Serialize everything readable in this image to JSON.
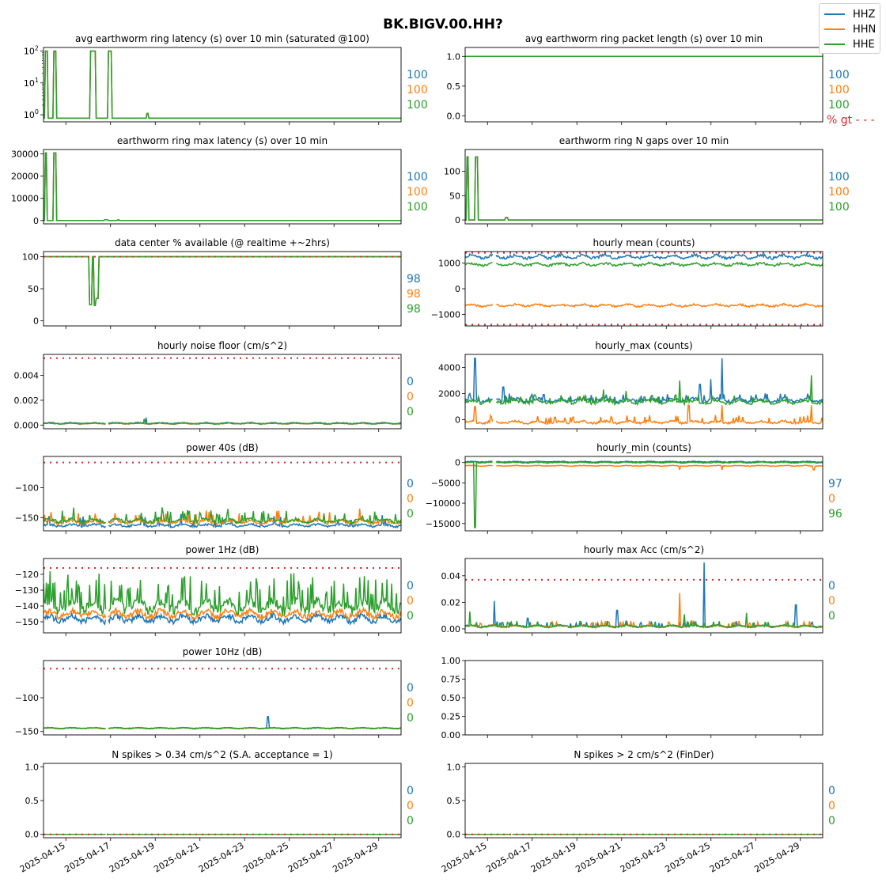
{
  "figure_title": "BK.BIGV.00.HH?",
  "legend": [
    {
      "name": "HHZ",
      "color": "#1f77b4"
    },
    {
      "name": "HHN",
      "color": "#ff7f0e"
    },
    {
      "name": "HHE",
      "color": "#2ca02c"
    }
  ],
  "colors": {
    "threshold": "#d62728",
    "HHZ": "#1f77b4",
    "HHN": "#ff7f0e",
    "HHE": "#2ca02c"
  },
  "x_tick_labels": [
    "2025-04-15",
    "2025-04-17",
    "2025-04-19",
    "2025-04-21",
    "2025-04-23",
    "2025-04-25",
    "2025-04-27",
    "2025-04-29"
  ],
  "chart_data": [
    {
      "id": "latency",
      "type": "line",
      "title": "avg earthworm ring latency (s)   over 10 min (saturated @100)",
      "yscale": "log",
      "ylim": [
        0.6,
        130
      ],
      "yticks": [
        1,
        10,
        100
      ],
      "yticklabels": [
        "10^0",
        "10^1",
        "10^2"
      ],
      "xlim": [
        "2025-04-14",
        "2025-04-30"
      ],
      "side_values": [
        "100",
        "100",
        "100"
      ],
      "threshold": null,
      "description": "baseline ~0.8 s with spikes to 100 s on Apr 14-15 and Apr 16-17, small bump ~1 s on Apr 18"
    },
    {
      "id": "pktlen",
      "type": "line",
      "title": "avg earthworm ring packet length (s)   over 10 min",
      "ylim": [
        -0.1,
        1.15
      ],
      "yticks": [
        0.0,
        0.5,
        1.0
      ],
      "yticklabels": [
        "0.0",
        "0.5",
        "1.0"
      ],
      "xlim": [
        "2025-04-14",
        "2025-04-30"
      ],
      "side_values": [
        "100",
        "100",
        "100"
      ],
      "threshold_label": "% gt - - -",
      "description": "constant 1.0 s for all channels"
    },
    {
      "id": "maxlat",
      "type": "line",
      "title": "earthworm ring max latency (s)   over 10 min",
      "ylim": [
        -1500,
        32000
      ],
      "yticks": [
        0,
        10000,
        20000,
        30000
      ],
      "yticklabels": [
        "0",
        "10000",
        "20000",
        "30000"
      ],
      "xlim": [
        "2025-04-14",
        "2025-04-30"
      ],
      "side_values": [
        "100",
        "100",
        "100"
      ],
      "description": "spikes to ~30500 s on Apr 14 and Apr 15, otherwise ~0"
    },
    {
      "id": "ngaps",
      "type": "line",
      "title": "earthworm ring N gaps   over 10 min",
      "ylim": [
        -8,
        145
      ],
      "yticks": [
        0,
        50,
        100
      ],
      "yticklabels": [
        "0",
        "50",
        "100"
      ],
      "xlim": [
        "2025-04-14",
        "2025-04-30"
      ],
      "side_values": [
        "100",
        "100",
        "100"
      ],
      "description": "spikes to ~130 on Apr 14 and Apr 15, small spike ~5 on Apr 16"
    },
    {
      "id": "avail",
      "type": "line",
      "title": "data center % available (@ realtime +~2hrs)",
      "ylim": [
        -8,
        108
      ],
      "yticks": [
        0,
        50,
        100
      ],
      "yticklabels": [
        "0",
        "50",
        "100"
      ],
      "xlim": [
        "2025-04-14",
        "2025-04-30"
      ],
      "side_values": [
        "98",
        "98",
        "98"
      ],
      "threshold": 100,
      "description": "100% except drops to ~25% on Apr 16-17"
    },
    {
      "id": "hmean",
      "type": "line",
      "title": "hourly mean (counts)",
      "ylim": [
        -1450,
        1450
      ],
      "yticks": [
        -1000,
        0,
        1000
      ],
      "yticklabels": [
        "−1000",
        "0",
        "1000"
      ],
      "xlim": [
        "2025-04-14",
        "2025-04-30"
      ],
      "side_values": [],
      "thresholds": [
        1400,
        -1400
      ],
      "series": [
        {
          "name": "HHZ",
          "level": 1250
        },
        {
          "name": "HHN",
          "level": -650
        },
        {
          "name": "HHE",
          "level": 950
        }
      ]
    },
    {
      "id": "noise",
      "type": "line",
      "title": "hourly noise floor (cm/s^2)",
      "ylim": [
        -0.0003,
        0.0057
      ],
      "yticks": [
        0.0,
        0.002,
        0.004
      ],
      "yticklabels": [
        "0.000",
        "0.002",
        "0.004"
      ],
      "xlim": [
        "2025-04-14",
        "2025-04-30"
      ],
      "side_values": [
        "0",
        "0",
        "0"
      ],
      "threshold": 0.0054,
      "series": [
        {
          "name": "HHZ",
          "level": 0.00015
        },
        {
          "name": "HHN",
          "level": 0.00012
        },
        {
          "name": "HHE",
          "level": 0.00013
        }
      ]
    },
    {
      "id": "hmax",
      "type": "line",
      "title": "hourly_max (counts)",
      "ylim": [
        -700,
        5000
      ],
      "yticks": [
        0,
        2000,
        4000
      ],
      "yticklabels": [
        "0",
        "2000",
        "4000"
      ],
      "xlim": [
        "2025-04-14",
        "2025-04-30"
      ],
      "side_values": [],
      "series": [
        {
          "name": "HHZ",
          "level": 1500
        },
        {
          "name": "HHN",
          "level": -200
        },
        {
          "name": "HHE",
          "level": 1350
        }
      ]
    },
    {
      "id": "p40",
      "type": "line",
      "title": "power 40s (dB)",
      "ylim": [
        -172,
        -48
      ],
      "yticks": [
        -150,
        -100
      ],
      "yticklabels": [
        "−150",
        "−100"
      ],
      "xlim": [
        "2025-04-14",
        "2025-04-30"
      ],
      "side_values": [
        "0",
        "0",
        "0"
      ],
      "threshold": -58,
      "series": [
        {
          "name": "HHZ",
          "level": -163
        },
        {
          "name": "HHN",
          "level": -157
        },
        {
          "name": "HHE",
          "level": -155
        }
      ]
    },
    {
      "id": "hmin",
      "type": "line",
      "title": "hourly_min (counts)",
      "ylim": [
        -16800,
        1500
      ],
      "yticks": [
        -15000,
        -10000,
        -5000,
        0
      ],
      "yticklabels": [
        "−15000",
        "−10000",
        "−5000",
        "0"
      ],
      "xlim": [
        "2025-04-14",
        "2025-04-30"
      ],
      "side_values": [
        "97",
        "0",
        "96"
      ],
      "series": [
        {
          "name": "HHZ",
          "level": 200
        },
        {
          "name": "HHN",
          "level": -800
        },
        {
          "name": "HHE",
          "level": 0
        }
      ]
    },
    {
      "id": "p1hz",
      "type": "line",
      "title": "power 1Hz (dB)",
      "ylim": [
        -157,
        -110
      ],
      "yticks": [
        -150,
        -140,
        -130,
        -120
      ],
      "yticklabels": [
        "−150",
        "−140",
        "−130",
        "−120"
      ],
      "xlim": [
        "2025-04-14",
        "2025-04-30"
      ],
      "side_values": [
        "0",
        "0",
        "0"
      ],
      "threshold": -116,
      "series": [
        {
          "name": "HHZ",
          "level": -148
        },
        {
          "name": "HHN",
          "level": -145
        },
        {
          "name": "HHE",
          "level": -140
        }
      ]
    },
    {
      "id": "hmaxacc",
      "type": "line",
      "title": "hourly max Acc (cm/s^2)",
      "ylim": [
        -0.003,
        0.053
      ],
      "yticks": [
        0.0,
        0.02,
        0.04
      ],
      "yticklabels": [
        "0.00",
        "0.02",
        "0.04"
      ],
      "xlim": [
        "2025-04-14",
        "2025-04-30"
      ],
      "side_values": [
        "0",
        "0",
        "0"
      ],
      "threshold": 0.037,
      "series": [
        {
          "name": "HHZ",
          "level": 0.002
        },
        {
          "name": "HHN",
          "level": 0.002
        },
        {
          "name": "HHE",
          "level": 0.002
        }
      ]
    },
    {
      "id": "p10hz",
      "type": "line",
      "title": "power 10Hz (dB)",
      "ylim": [
        -155,
        -45
      ],
      "yticks": [
        -150,
        -100
      ],
      "yticklabels": [
        "−150",
        "−100"
      ],
      "xlim": [
        "2025-04-14",
        "2025-04-30"
      ],
      "side_values": [
        "0",
        "0",
        "0"
      ],
      "threshold": -57,
      "series": [
        {
          "name": "HHZ",
          "level": -145
        },
        {
          "name": "HHN",
          "level": -145
        },
        {
          "name": "HHE",
          "level": -145
        }
      ]
    },
    {
      "id": "empty",
      "type": "line",
      "title": "",
      "ylim": [
        0,
        1
      ],
      "yticks": [
        0.0,
        0.25,
        0.5,
        0.75,
        1.0
      ],
      "yticklabels": [
        "0.00",
        "0.25",
        "0.50",
        "0.75",
        "1.00"
      ],
      "xlim": [
        "2025-04-14",
        "2025-04-30"
      ],
      "side_values": []
    },
    {
      "id": "spk034",
      "type": "line",
      "title": "N spikes > 0.34 cm/s^2 (S.A. acceptance = 1)",
      "ylim": [
        -0.05,
        1.05
      ],
      "yticks": [
        0.0,
        0.5,
        1.0
      ],
      "yticklabels": [
        "0.0",
        "0.5",
        "1.0"
      ],
      "xlim": [
        "2025-04-14",
        "2025-04-30"
      ],
      "side_values": [
        "0",
        "0",
        "0"
      ],
      "threshold": 0,
      "series": [
        {
          "name": "HHZ",
          "level": 0
        },
        {
          "name": "HHN",
          "level": 0
        },
        {
          "name": "HHE",
          "level": 0
        }
      ]
    },
    {
      "id": "spk2",
      "type": "line",
      "title": "N spikes > 2 cm/s^2 (FinDer)",
      "ylim": [
        -0.05,
        1.05
      ],
      "yticks": [
        0.0,
        0.5,
        1.0
      ],
      "yticklabels": [
        "0.0",
        "0.5",
        "1.0"
      ],
      "xlim": [
        "2025-04-14",
        "2025-04-30"
      ],
      "side_values": [
        "0",
        "0",
        "0"
      ],
      "threshold": 0,
      "series": [
        {
          "name": "HHZ",
          "level": 0
        },
        {
          "name": "HHN",
          "level": 0
        },
        {
          "name": "HHE",
          "level": 0
        }
      ]
    }
  ]
}
